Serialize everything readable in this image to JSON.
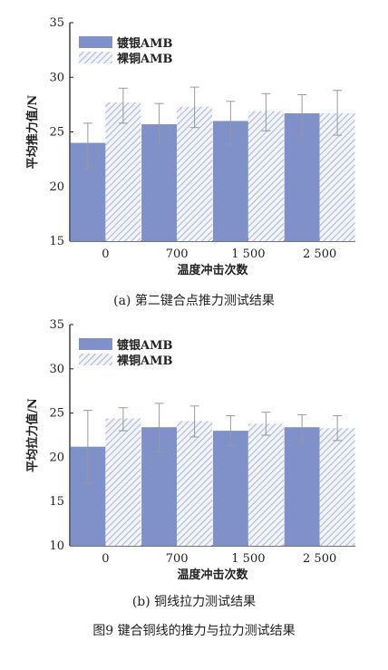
{
  "colors": {
    "solid": "#8090c8",
    "hatch_line": "#a8b4d8",
    "hatch_bg": "#f2f4fa",
    "axis": "#222222",
    "error": "#999999"
  },
  "chart_data": [
    {
      "type": "bar",
      "panel": "a",
      "title": "",
      "categories": [
        "0",
        "700",
        "1 500",
        "2 500"
      ],
      "xlabel": "温度冲击次数",
      "ylabel": "平均推力值/N",
      "ylim": [
        15,
        35
      ],
      "yticks": [
        "15",
        "20",
        "25",
        "30",
        "35"
      ],
      "legend_position": "top-left",
      "grid": false,
      "series": [
        {
          "name": "镀银AMB",
          "values": [
            24.0,
            25.7,
            26.0,
            26.7
          ],
          "err_low": [
            21.7,
            23.8,
            23.8,
            24.7
          ],
          "err_high": [
            25.8,
            27.6,
            27.8,
            28.4
          ]
        },
        {
          "name": "裸铜AMB",
          "values": [
            27.7,
            27.3,
            26.9,
            26.7
          ],
          "err_low": [
            25.8,
            25.4,
            25.1,
            24.7
          ],
          "err_high": [
            29.0,
            29.1,
            28.5,
            28.8
          ]
        }
      ],
      "caption": "(a) 第二键合点推力测试结果"
    },
    {
      "type": "bar",
      "panel": "b",
      "title": "",
      "categories": [
        "0",
        "700",
        "1 500",
        "2 500"
      ],
      "xlabel": "温度冲击次数",
      "ylabel": "平均拉力值/N",
      "ylim": [
        10,
        35
      ],
      "yticks": [
        "10",
        "15",
        "20",
        "25",
        "30",
        "35"
      ],
      "legend_position": "top-left",
      "grid": false,
      "series": [
        {
          "name": "镀银AMB",
          "values": [
            21.2,
            23.4,
            23.0,
            23.4
          ],
          "err_low": [
            17.0,
            20.6,
            21.3,
            21.8
          ],
          "err_high": [
            25.3,
            26.1,
            24.7,
            24.8
          ]
        },
        {
          "name": "裸铜AMB",
          "values": [
            24.4,
            24.1,
            23.8,
            23.3
          ],
          "err_low": [
            23.0,
            22.3,
            22.5,
            21.9
          ],
          "err_high": [
            25.6,
            25.8,
            25.1,
            24.7
          ]
        }
      ],
      "caption": "(b) 铜线拉力测试结果"
    }
  ],
  "figure_caption": "图9   键合铜线的推力与拉力测试结果"
}
